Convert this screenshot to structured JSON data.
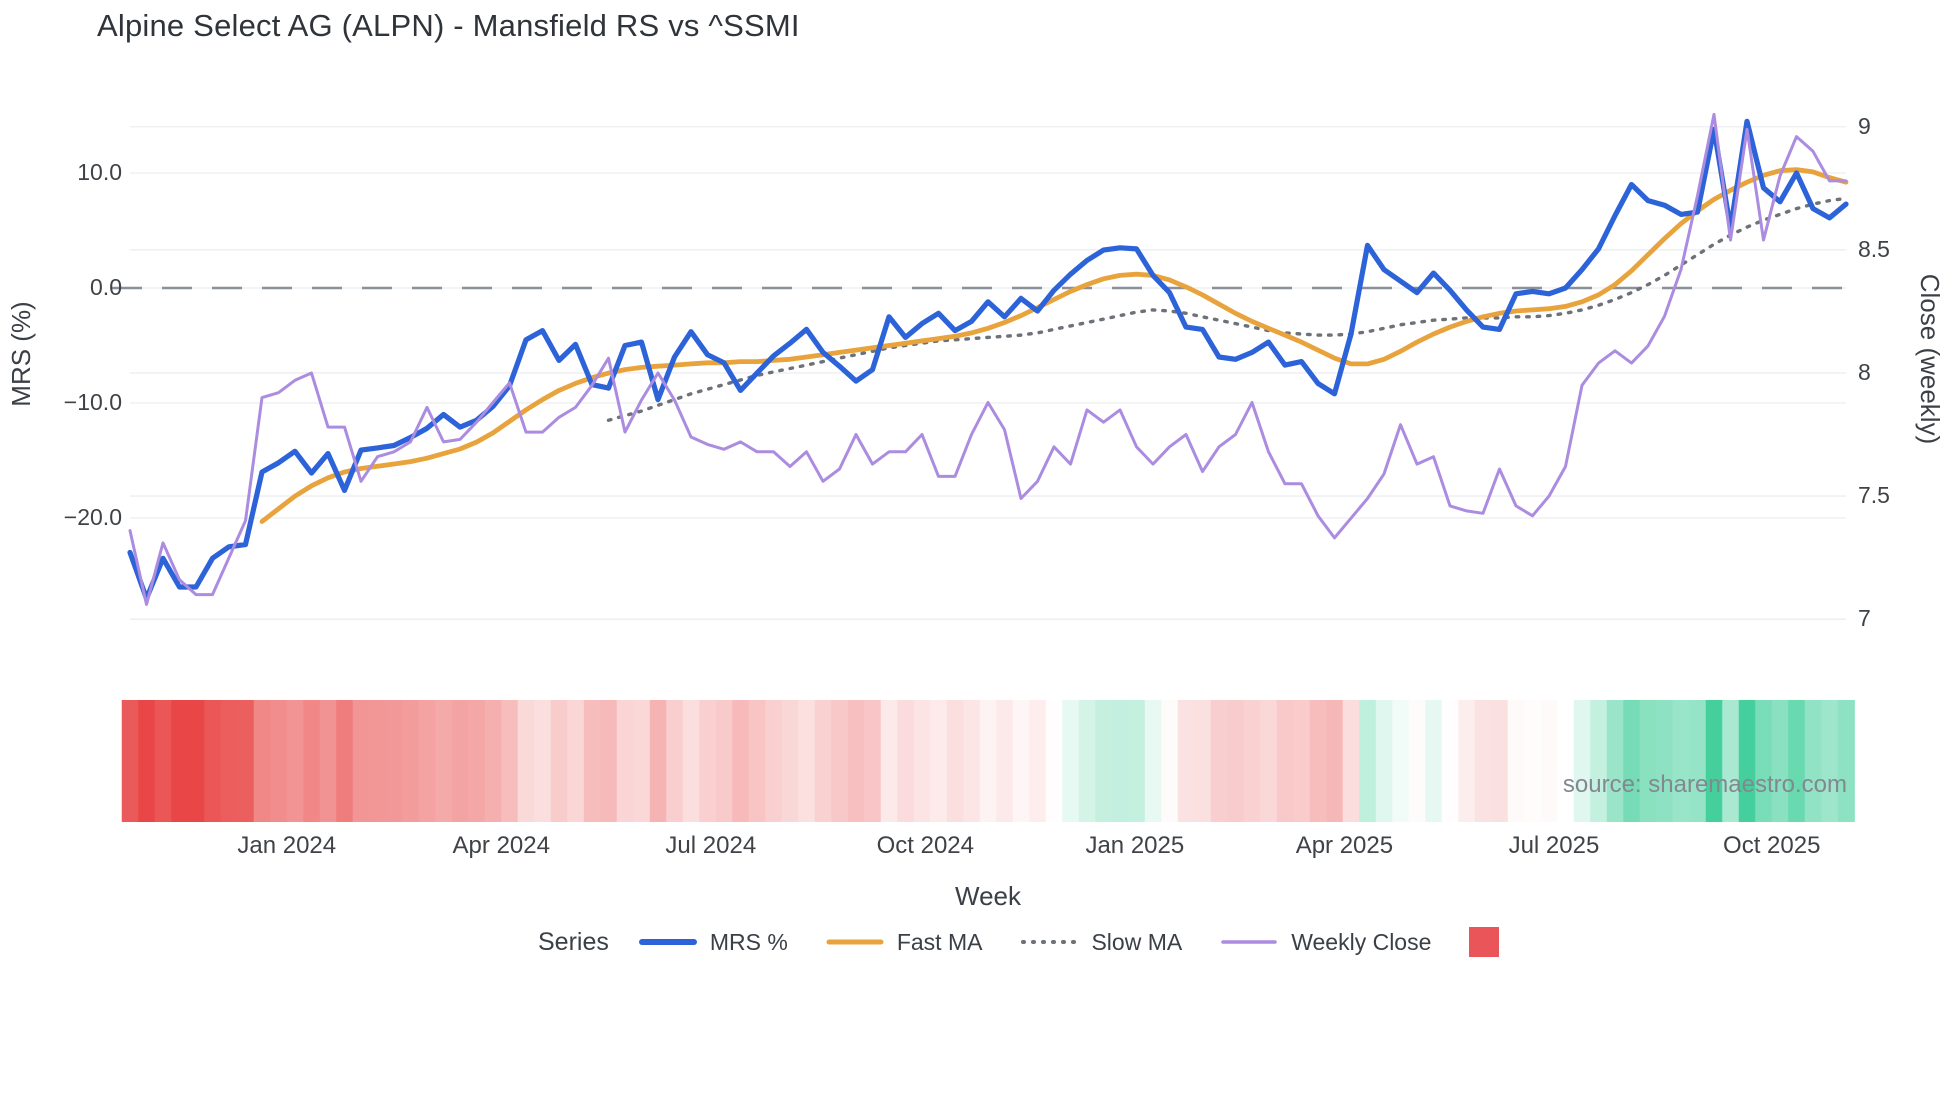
{
  "title": "Alpine Select AG (ALPN) - Mansfield RS vs ^SSMI",
  "source": "source: sharemaestro.com",
  "axes": {
    "left": {
      "title": "MRS (%)",
      "ticks": [
        {
          "label": "10.0",
          "value": 10
        },
        {
          "label": "0.0",
          "value": 0
        },
        {
          "label": "−10.0",
          "value": -10
        },
        {
          "label": "−20.0",
          "value": -20
        }
      ]
    },
    "right": {
      "title": "Close (weekly)",
      "ticks": [
        {
          "label": "9",
          "value": 9
        },
        {
          "label": "8.5",
          "value": 8.5
        },
        {
          "label": "8",
          "value": 8
        },
        {
          "label": "7.5",
          "value": 7.5
        },
        {
          "label": "7",
          "value": 7
        }
      ]
    },
    "x": {
      "title": "Week",
      "ticks": [
        {
          "label": "Jan 2024",
          "week": 9.5
        },
        {
          "label": "Apr 2024",
          "week": 22.5
        },
        {
          "label": "Jul 2024",
          "week": 35.2
        },
        {
          "label": "Oct 2024",
          "week": 48.2
        },
        {
          "label": "Jan 2025",
          "week": 60.9
        },
        {
          "label": "Apr 2025",
          "week": 73.6
        },
        {
          "label": "Jul 2025",
          "week": 86.3
        },
        {
          "label": "Oct 2025",
          "week": 99.5
        }
      ]
    }
  },
  "legend": {
    "title": "Series",
    "items": [
      {
        "label": "MRS %",
        "color": "#2d63d8",
        "style": "solid"
      },
      {
        "label": "Fast MA",
        "color": "#e8a33c",
        "style": "solid"
      },
      {
        "label": "Slow MA",
        "color": "#6d7178",
        "style": "dotted"
      },
      {
        "label": "Weekly Close",
        "color": "#ab8ce0",
        "style": "solid"
      }
    ],
    "heat_swatch_color": "#ea5559"
  },
  "colors": {
    "mrs": "#2d63d8",
    "fast_ma": "#e8a33c",
    "slow_ma": "#6d7178",
    "weekly_close": "#ab8ce0",
    "zero_line": "#8a9099",
    "gridline": "#eef1f4",
    "heat_negative": "#e94747",
    "heat_positive": "#44cf9c",
    "heat_neutral": "#ffffff"
  },
  "chart_data": {
    "type": "line",
    "x_unit": "week",
    "n_weeks": 105,
    "x_span": "Nov 2023 - Nov 2025 (weekly)",
    "left_axis_range": [
      -32,
      17.5
    ],
    "right_axis_range": [
      7,
      9
    ],
    "zero_reference_line": 0,
    "legend_position": "bottom",
    "grid": true,
    "series": [
      {
        "name": "MRS %",
        "axis": "left",
        "values": [
          -23.0,
          -27.0,
          -23.5,
          -26.0,
          -26.0,
          -23.5,
          -22.5,
          -22.3,
          -16.0,
          -15.2,
          -14.2,
          -16.1,
          -14.4,
          -17.6,
          -14.1,
          -13.9,
          -13.7,
          -13.0,
          -12.2,
          -11.0,
          -12.1,
          -11.5,
          -10.3,
          -8.5,
          -4.5,
          -3.7,
          -6.3,
          -4.9,
          -8.4,
          -8.7,
          -5.0,
          -4.7,
          -9.7,
          -6.0,
          -3.8,
          -5.8,
          -6.5,
          -8.9,
          -7.4,
          -5.9,
          -4.8,
          -3.6,
          -5.6,
          -6.8,
          -8.1,
          -7.1,
          -2.5,
          -4.3,
          -3.1,
          -2.2,
          -3.7,
          -2.9,
          -1.2,
          -2.5,
          -0.9,
          -2.0,
          -0.2,
          1.2,
          2.4,
          3.3,
          3.5,
          3.4,
          1.1,
          -0.4,
          -3.4,
          -3.6,
          -6.0,
          -6.2,
          -5.6,
          -4.7,
          -6.7,
          -6.4,
          -8.3,
          -9.2,
          -4.0,
          3.7,
          1.6,
          0.6,
          -0.4,
          1.3,
          -0.2,
          -1.9,
          -3.4,
          -3.6,
          -0.5,
          -0.3,
          -0.5,
          0.0,
          1.6,
          3.4,
          6.3,
          9.0,
          7.6,
          7.2,
          6.4,
          6.6,
          13.8,
          5.2,
          14.5,
          8.7,
          7.5,
          10.0,
          6.9,
          6.1,
          7.3
        ]
      },
      {
        "name": "Fast MA",
        "axis": "left",
        "values": [
          null,
          null,
          null,
          null,
          null,
          null,
          null,
          null,
          -20.3,
          -19.2,
          -18.1,
          -17.2,
          -16.5,
          -16.0,
          -15.7,
          -15.5,
          -15.3,
          -15.1,
          -14.8,
          -14.4,
          -14.0,
          -13.4,
          -12.6,
          -11.6,
          -10.6,
          -9.7,
          -8.9,
          -8.3,
          -7.8,
          -7.4,
          -7.1,
          -6.9,
          -6.8,
          -6.7,
          -6.6,
          -6.5,
          -6.5,
          -6.4,
          -6.4,
          -6.3,
          -6.2,
          -6.0,
          -5.8,
          -5.6,
          -5.4,
          -5.2,
          -5.0,
          -4.8,
          -4.6,
          -4.4,
          -4.2,
          -3.9,
          -3.5,
          -3.0,
          -2.4,
          -1.7,
          -1.0,
          -0.3,
          0.3,
          0.8,
          1.1,
          1.2,
          1.1,
          0.7,
          0.1,
          -0.6,
          -1.4,
          -2.2,
          -2.9,
          -3.5,
          -4.1,
          -4.7,
          -5.4,
          -6.1,
          -6.6,
          -6.6,
          -6.2,
          -5.5,
          -4.7,
          -4.0,
          -3.4,
          -2.9,
          -2.5,
          -2.2,
          -2.0,
          -1.9,
          -1.8,
          -1.6,
          -1.2,
          -0.6,
          0.3,
          1.5,
          2.9,
          4.3,
          5.6,
          6.7,
          7.7,
          8.5,
          9.2,
          9.8,
          10.2,
          10.3,
          10.1,
          9.6,
          9.2
        ]
      },
      {
        "name": "Slow MA",
        "axis": "left",
        "values": [
          null,
          null,
          null,
          null,
          null,
          null,
          null,
          null,
          null,
          null,
          null,
          null,
          null,
          null,
          null,
          null,
          null,
          null,
          null,
          null,
          null,
          null,
          null,
          null,
          null,
          null,
          null,
          null,
          null,
          -11.5,
          -11.1,
          -10.7,
          -10.2,
          -9.7,
          -9.2,
          -8.8,
          -8.4,
          -8.0,
          -7.6,
          -7.3,
          -7.0,
          -6.7,
          -6.4,
          -6.1,
          -5.8,
          -5.5,
          -5.2,
          -5.0,
          -4.8,
          -4.6,
          -4.5,
          -4.4,
          -4.3,
          -4.2,
          -4.1,
          -3.9,
          -3.6,
          -3.3,
          -3.0,
          -2.7,
          -2.4,
          -2.1,
          -1.9,
          -2.0,
          -2.2,
          -2.5,
          -2.8,
          -3.1,
          -3.4,
          -3.7,
          -3.9,
          -4.0,
          -4.1,
          -4.1,
          -4.0,
          -3.8,
          -3.5,
          -3.2,
          -3.0,
          -2.8,
          -2.7,
          -2.6,
          -2.6,
          -2.6,
          -2.5,
          -2.5,
          -2.4,
          -2.2,
          -1.9,
          -1.5,
          -1.0,
          -0.4,
          0.3,
          1.1,
          2.0,
          2.9,
          3.8,
          4.6,
          5.3,
          5.9,
          6.4,
          6.9,
          7.3,
          7.6,
          7.8
        ]
      },
      {
        "name": "Weekly Close",
        "axis": "right",
        "values": [
          7.36,
          7.06,
          7.31,
          7.16,
          7.1,
          7.1,
          7.25,
          7.4,
          7.9,
          7.92,
          7.97,
          8.0,
          7.78,
          7.78,
          7.56,
          7.66,
          7.68,
          7.72,
          7.86,
          7.72,
          7.73,
          7.8,
          7.88,
          7.96,
          7.76,
          7.76,
          7.82,
          7.86,
          7.95,
          8.06,
          7.76,
          7.89,
          8.0,
          7.89,
          7.74,
          7.71,
          7.69,
          7.72,
          7.68,
          7.68,
          7.62,
          7.68,
          7.56,
          7.61,
          7.75,
          7.63,
          7.68,
          7.68,
          7.75,
          7.58,
          7.58,
          7.75,
          7.88,
          7.77,
          7.49,
          7.56,
          7.7,
          7.63,
          7.85,
          7.8,
          7.85,
          7.7,
          7.63,
          7.7,
          7.75,
          7.6,
          7.7,
          7.75,
          7.88,
          7.68,
          7.55,
          7.55,
          7.42,
          7.33,
          7.41,
          7.49,
          7.59,
          7.79,
          7.63,
          7.66,
          7.46,
          7.44,
          7.43,
          7.61,
          7.46,
          7.42,
          7.5,
          7.62,
          7.95,
          8.04,
          8.09,
          8.04,
          8.11,
          8.23,
          8.42,
          8.72,
          9.05,
          8.54,
          8.99,
          8.54,
          8.8,
          8.96,
          8.9,
          8.78,
          8.78
        ]
      }
    ],
    "heatmap_strip": {
      "description": "one cell per week, colored by MRS % sign and magnitude (red negative, green positive)",
      "source_series": "MRS %"
    }
  }
}
